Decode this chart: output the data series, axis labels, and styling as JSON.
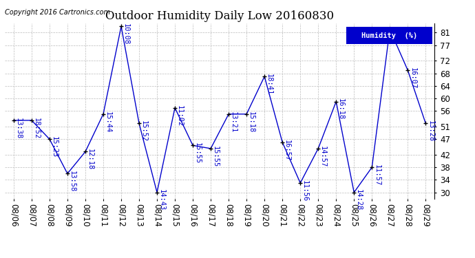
{
  "title": "Outdoor Humidity Daily Low 20160830",
  "copyright": "Copyright 2016 Cartronics.com",
  "legend_label": "Humidity  (%)",
  "x_labels": [
    "08/06",
    "08/07",
    "08/08",
    "08/09",
    "08/10",
    "08/11",
    "08/12",
    "08/13",
    "08/14",
    "08/15",
    "08/16",
    "08/17",
    "08/18",
    "08/19",
    "08/20",
    "08/21",
    "08/22",
    "08/23",
    "08/24",
    "08/25",
    "08/26",
    "08/27",
    "08/28",
    "08/29"
  ],
  "y_values": [
    53,
    53,
    47,
    36,
    43,
    55,
    83,
    52,
    30,
    57,
    45,
    44,
    55,
    55,
    67,
    46,
    33,
    44,
    59,
    30,
    38,
    82,
    69,
    52
  ],
  "point_labels": [
    "13:38",
    "18:52",
    "15:23",
    "13:58",
    "12:18",
    "15:44",
    "10:08",
    "15:52",
    "14:43",
    "11:02",
    "15:55",
    "15:55",
    "13:21",
    "15:18",
    "18:41",
    "16:57",
    "11:56",
    "14:57",
    "16:18",
    "14:28",
    "11:57",
    "",
    "16:07",
    "13:28"
  ],
  "ylim": [
    28,
    84
  ],
  "yticks": [
    30,
    34,
    38,
    42,
    47,
    51,
    56,
    60,
    64,
    68,
    72,
    77,
    81
  ],
  "line_color": "#0000CC",
  "bg_color": "#ffffff",
  "grid_color": "#bbbbbb",
  "title_fontsize": 12,
  "label_fontsize": 7.5,
  "tick_fontsize": 8.5,
  "copyright_fontsize": 7
}
